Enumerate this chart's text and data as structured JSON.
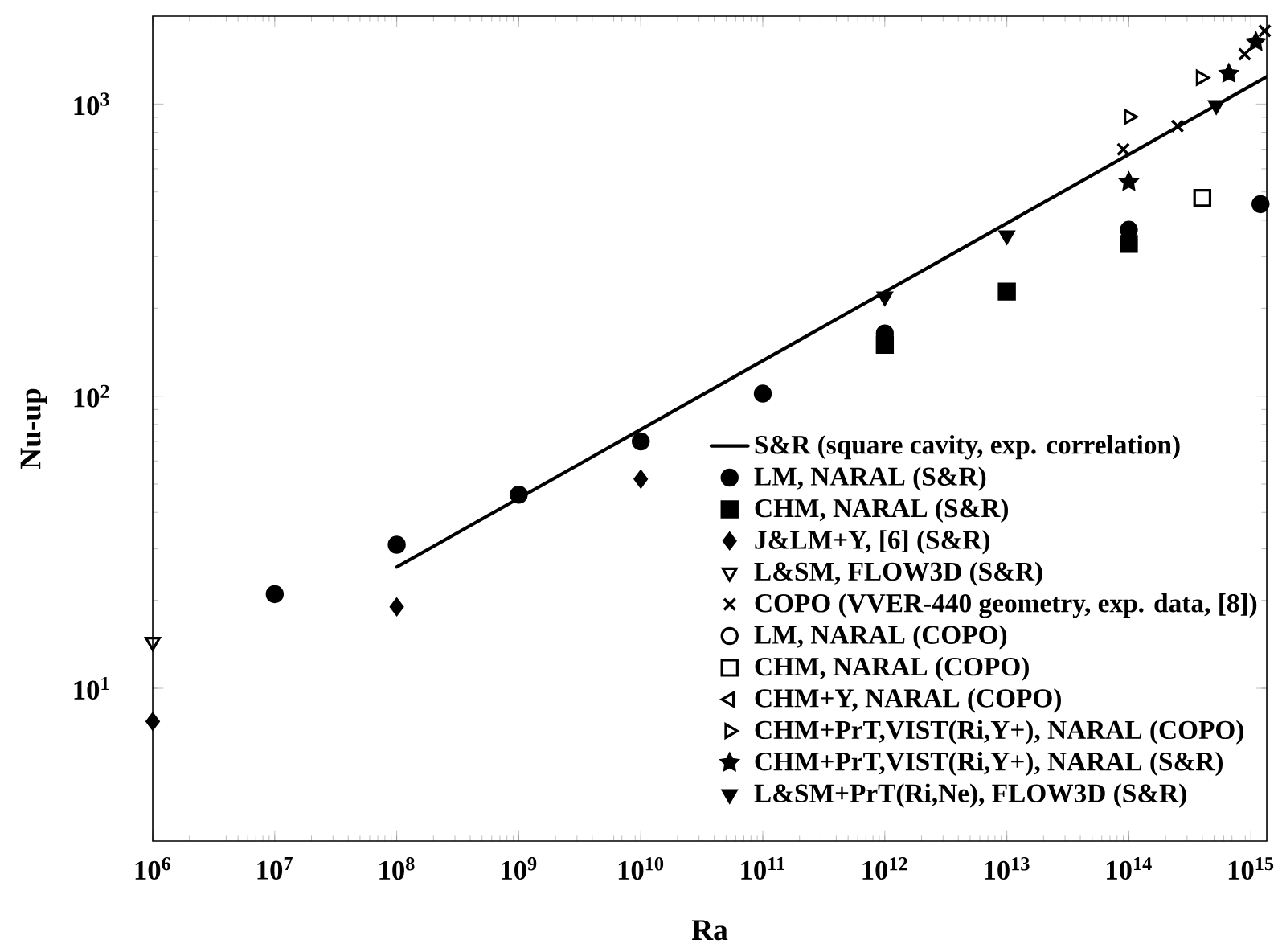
{
  "chart_data": {
    "type": "scatter",
    "xlabel": "Ra",
    "ylabel": "Nu-up",
    "log": "xy",
    "xlim": [
      1000000.0,
      1350000000000000.0
    ],
    "ylim": [
      3,
      2000
    ],
    "xticks": [
      {
        "value": 1000000.0,
        "label": "10$^{6}$"
      },
      {
        "value": 10000000.0,
        "label": "10$^{7}$"
      },
      {
        "value": 100000000.0,
        "label": "10$^{8}$"
      },
      {
        "value": 1000000000.0,
        "label": "10$^{9}$"
      },
      {
        "value": 10000000000.0,
        "label": "10$^{10}$"
      },
      {
        "value": 100000000000.0,
        "label": "10$^{11}$"
      },
      {
        "value": 1000000000000.0,
        "label": "10$^{12}$"
      },
      {
        "value": 10000000000000.0,
        "label": "10$^{13}$"
      },
      {
        "value": 100000000000000.0,
        "label": "10$^{14}$"
      },
      {
        "value": 1000000000000000.0,
        "label": "10$^{15}$"
      }
    ],
    "yticks": [
      {
        "value": 10,
        "label": "10$^{1}$"
      },
      {
        "value": 100,
        "label": "10$^{2}$"
      },
      {
        "value": 1000,
        "label": "10$^{3}$"
      }
    ],
    "legend": "bottom right",
    "series": [
      {
        "name": "S&R (square cavity, exp. correlation)",
        "type": "line",
        "color": "#000000",
        "marker": "none",
        "line_style": "solid",
        "x": [
          100000000.0,
          1350000000000000.0
        ],
        "values": [
          26,
          1240
        ]
      },
      {
        "name": "LM, NARAL (S&R)",
        "color": "#000000",
        "marker": "circle",
        "x": [
          10000000.0,
          100000000.0,
          1000000000.0,
          10000000000.0,
          100000000000.0,
          1000000000000.0,
          100000000000000.0,
          1200000000000000.0
        ],
        "values": [
          21,
          31,
          46,
          70,
          102,
          164,
          371,
          454
        ]
      },
      {
        "name": "CHM, NARAL (S&R)",
        "color": "#000000",
        "marker": "square",
        "x": [
          1000000000000.0,
          10000000000000.0,
          100000000000000.0
        ],
        "values": [
          150,
          228,
          332
        ]
      },
      {
        "name": "J&LM+Y, [6] (S&R)",
        "color": "#000000",
        "marker": "diamond",
        "x": [
          1000000.0,
          100000000.0,
          10000000000.0
        ],
        "values": [
          7.7,
          19,
          52
        ]
      },
      {
        "name": "L&SM, FLOW3D (S&R)",
        "color": "#000000",
        "marker": "triangle-down-open",
        "x": [
          1000000.0
        ],
        "values": [
          14.4
        ]
      },
      {
        "name": "COPO (VVER-440 geometry, exp. data, [8])",
        "color": "#000000",
        "marker": "cross",
        "x": [
          90000000000000.0,
          250000000000000.0,
          890000000000000.0,
          1300000000000000.0
        ],
        "values": [
          700,
          840,
          1480,
          1780
        ]
      },
      {
        "name": "LM, NARAL (COPO)",
        "color": "#000000",
        "marker": "circle-open"
      },
      {
        "name": "CHM, NARAL (COPO)",
        "color": "#000000",
        "marker": "square-open",
        "x": [
          400000000000000.0
        ],
        "values": [
          477
        ]
      },
      {
        "name": "CHM+Y, NARAL (COPO)",
        "color": "#000000",
        "marker": "triangle-left-open"
      },
      {
        "name": "CHM+PrT,VIST(Ri,Y+), NARAL (COPO)",
        "color": "#000000",
        "marker": "triangle-right-open",
        "x": [
          100000000000000.0,
          390000000000000.0
        ],
        "values": [
          904,
          1230
        ]
      },
      {
        "name": "CHM+PrT,VIST(Ri,Y+), NARAL (S&R)",
        "color": "#000000",
        "marker": "star",
        "x": [
          100000000000000.0,
          660000000000000.0,
          1100000000000000.0
        ],
        "values": [
          541,
          1270,
          1630
        ]
      },
      {
        "name": "L&SM+PrT(Ri,Ne), FLOW3D (S&R)",
        "color": "#000000",
        "marker": "triangle-down",
        "x": [
          1000000000000.0,
          10000000000000.0,
          520000000000000.0
        ],
        "values": [
          219,
          355,
          990
        ]
      }
    ]
  }
}
